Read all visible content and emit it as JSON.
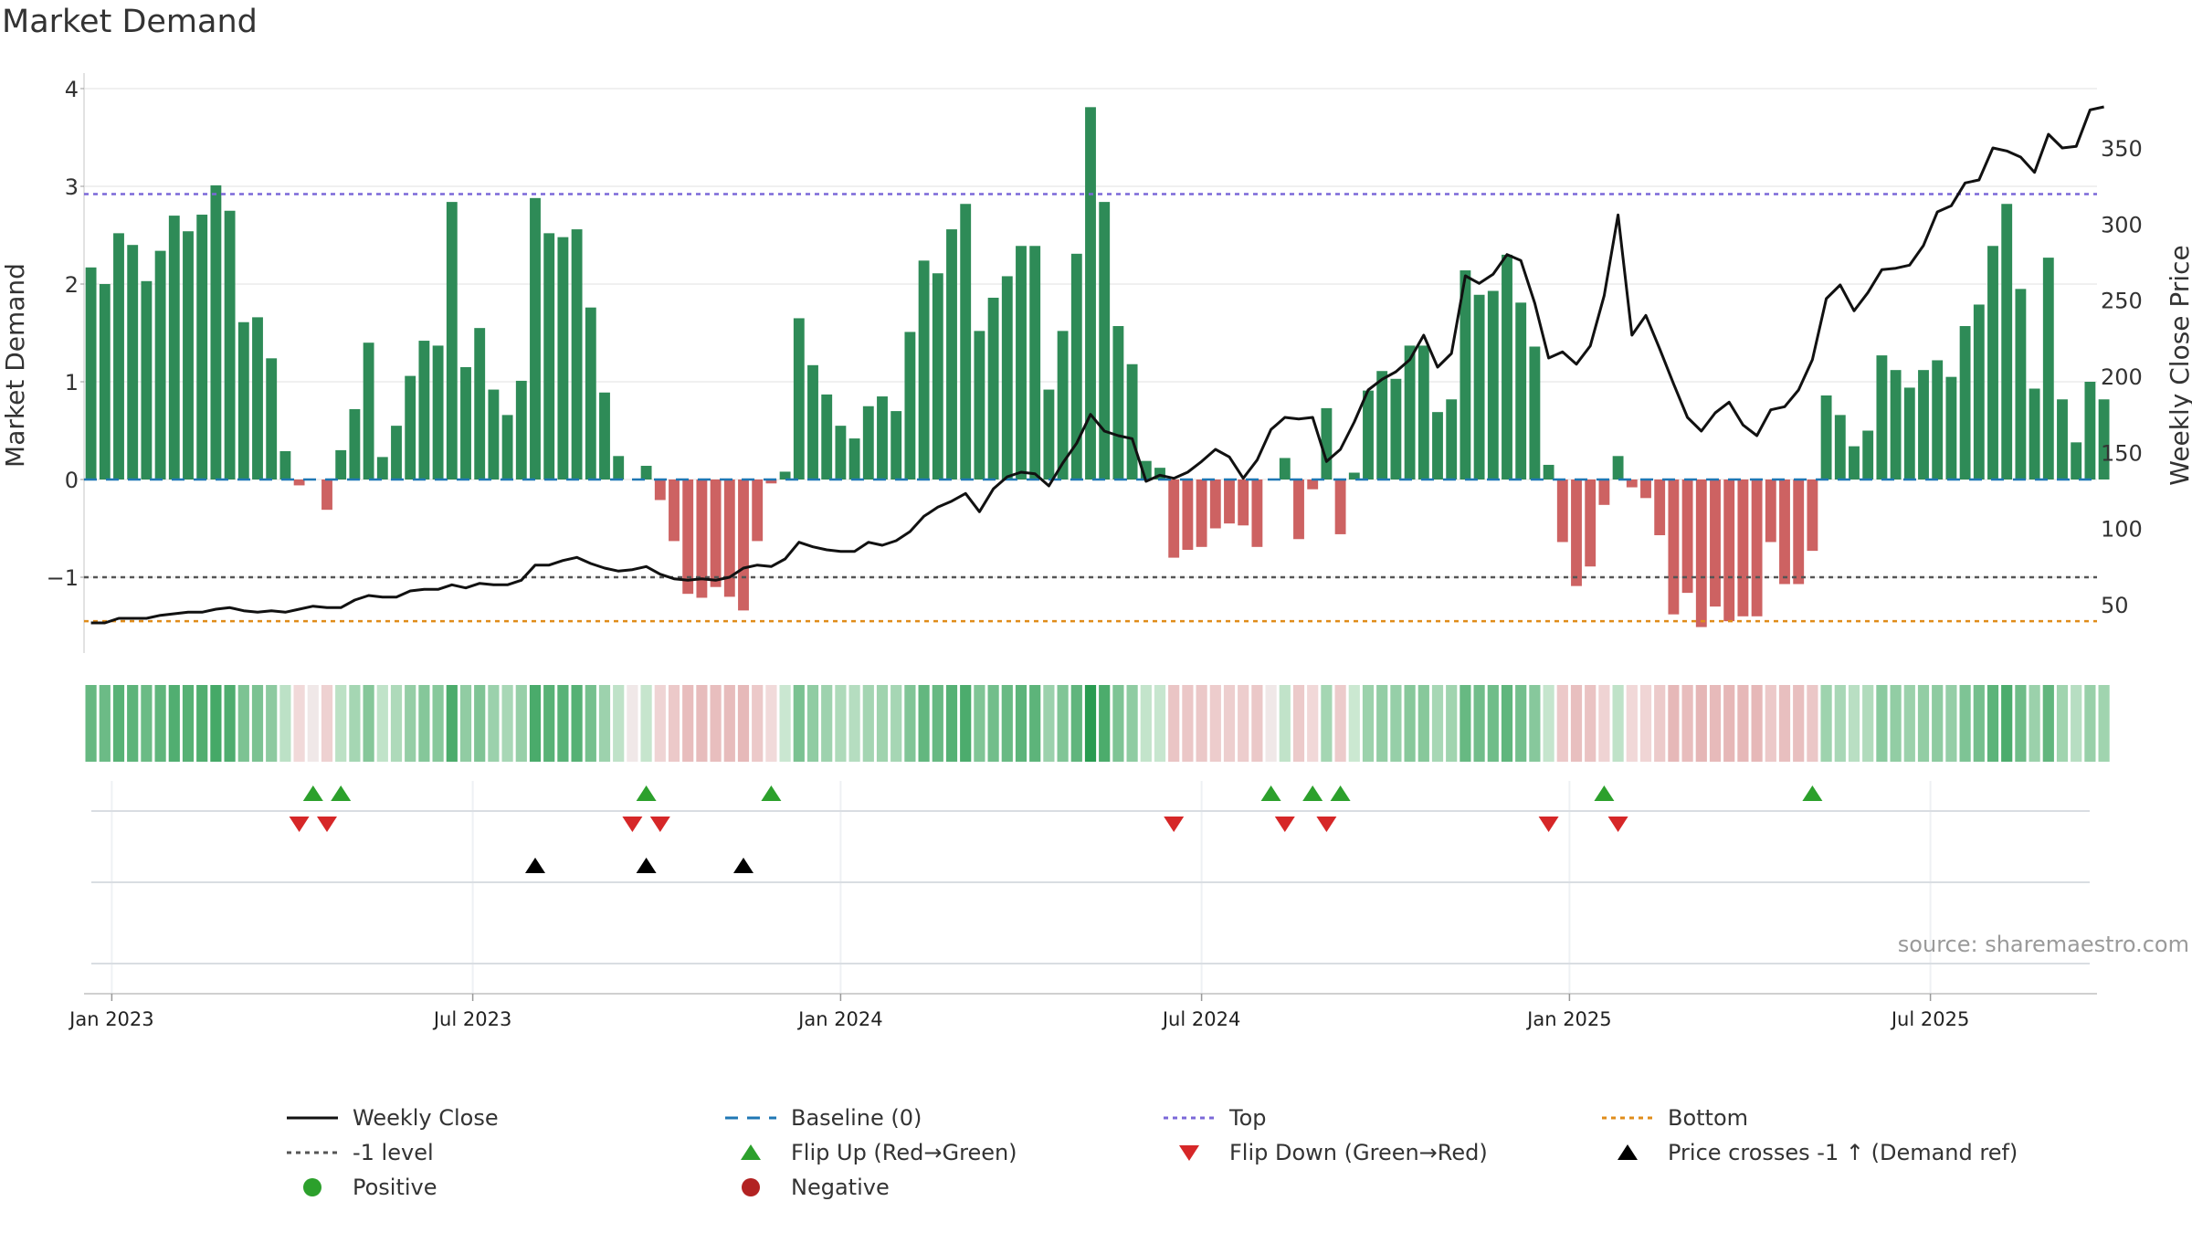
{
  "title": "Market Demand",
  "source": "source: sharemaestro.com",
  "colors": {
    "positive": "#2e8b57",
    "negative": "#cd6262",
    "price": "#111111",
    "baseline": "#1f77b4",
    "top": "#7b68d8",
    "minus1": "#555555",
    "bottom": "#e08c1a",
    "flip_up": "#2ca02c",
    "flip_down": "#d62728",
    "cross": "#000000",
    "positive_dot": "#2ca02c",
    "negative_dot": "#b22222"
  },
  "chart_data": {
    "type": "bar",
    "title": "Market Demand",
    "ylabel": "Market Demand",
    "y2label": "Weekly Close Price",
    "ylim": [
      -1.8,
      4.0
    ],
    "y2lim": [
      12,
      383
    ],
    "yticks": [
      4,
      3,
      2,
      1,
      0,
      -1
    ],
    "ytick_labels": [
      "4",
      "3",
      "2",
      "1",
      "0",
      "−1"
    ],
    "y2ticks": [
      350,
      300,
      250,
      200,
      150,
      100,
      50
    ],
    "y2tick_labels": [
      "350",
      "300",
      "250",
      "200",
      "150",
      "100",
      "50"
    ],
    "x_index_range": [
      -0.5,
      144.5
    ],
    "xticks": [
      1.5,
      27.5,
      54,
      80,
      106.5,
      132.5
    ],
    "xtick_labels": [
      "Jan 2023",
      "Jul 2023",
      "Jan 2024",
      "Jul 2024",
      "Jan 2025",
      "Jul 2025"
    ],
    "reference_lines": {
      "baseline": 0,
      "top": 2.92,
      "minus1": -1,
      "bottom": -1.45
    },
    "series": [
      {
        "name": "Market Demand",
        "values": [
          2.17,
          2.0,
          2.52,
          2.4,
          2.03,
          2.34,
          2.7,
          2.54,
          2.71,
          3.01,
          2.75,
          1.61,
          1.66,
          1.24,
          0.29,
          -0.06,
          0.0,
          -0.31,
          0.3,
          0.72,
          1.4,
          0.23,
          0.55,
          1.06,
          1.42,
          1.37,
          2.84,
          1.15,
          1.55,
          0.92,
          0.66,
          1.01,
          2.88,
          2.52,
          2.48,
          2.56,
          1.76,
          0.89,
          0.24,
          0.0,
          0.14,
          -0.21,
          -0.63,
          -1.17,
          -1.21,
          -1.1,
          -1.2,
          -1.34,
          -0.63,
          -0.04,
          0.08,
          1.65,
          1.17,
          0.87,
          0.55,
          0.42,
          0.75,
          0.85,
          0.7,
          1.51,
          2.24,
          2.11,
          2.56,
          2.82,
          1.52,
          1.86,
          2.08,
          2.39,
          2.39,
          0.92,
          1.52,
          2.31,
          3.81,
          2.84,
          1.57,
          1.18,
          0.19,
          0.12,
          -0.8,
          -0.72,
          -0.69,
          -0.5,
          -0.45,
          -0.47,
          -0.69,
          0.0,
          0.22,
          -0.61,
          -0.1,
          0.73,
          -0.56,
          0.07,
          0.91,
          1.11,
          1.03,
          1.37,
          1.37,
          0.69,
          0.82,
          2.14,
          1.89,
          1.93,
          2.3,
          1.81,
          1.36,
          0.15,
          -0.64,
          -1.09,
          -0.89,
          -0.26,
          0.24,
          -0.08,
          -0.19,
          -0.57,
          -1.38,
          -1.16,
          -1.51,
          -1.3,
          -1.45,
          -1.4,
          -1.4,
          -0.64,
          -1.07,
          -1.07,
          -0.73,
          0.86,
          0.66,
          0.34,
          0.5,
          1.27,
          1.12,
          0.94,
          1.12,
          1.22,
          1.05,
          1.57,
          1.79,
          2.39,
          2.82,
          1.95,
          0.93,
          2.27,
          0.82,
          0.38,
          1.0,
          0.82
        ]
      },
      {
        "name": "Weekly Close",
        "values": [
          38,
          38,
          41,
          41,
          41,
          43,
          44,
          45,
          45,
          47,
          48,
          46,
          45,
          46,
          45,
          47,
          49,
          48,
          48,
          53,
          56,
          55,
          55,
          59,
          60,
          60,
          63,
          61,
          64,
          63,
          63,
          66,
          76,
          76,
          79,
          81,
          77,
          74,
          72,
          73,
          75,
          70,
          67,
          66,
          67,
          66,
          68,
          74,
          76,
          75,
          80,
          91,
          88,
          86,
          85,
          85,
          91,
          89,
          92,
          98,
          108,
          114,
          118,
          123,
          111,
          126,
          134,
          137,
          136,
          128,
          143,
          156,
          175,
          164,
          161,
          159,
          131,
          135,
          133,
          137,
          144,
          152,
          147,
          133,
          145,
          165,
          173,
          172,
          173,
          144,
          152,
          170,
          191,
          198,
          203,
          211,
          227,
          206,
          215,
          266,
          261,
          267,
          280,
          276,
          248,
          212,
          216,
          208,
          220,
          253,
          306,
          227,
          240,
          218,
          195,
          173,
          164,
          176,
          183,
          168,
          161,
          178,
          180,
          191,
          211,
          251,
          260,
          243,
          255,
          270,
          271,
          273,
          286,
          308,
          312,
          327,
          329,
          350,
          348,
          344,
          334,
          359,
          350,
          351,
          375,
          377
        ]
      }
    ],
    "strip_label": "",
    "flip_up_indices": [
      16,
      18,
      40,
      49,
      85,
      88,
      90,
      109,
      124
    ],
    "flip_down_indices": [
      15,
      17,
      39,
      41,
      78,
      86,
      89,
      105,
      110
    ],
    "cross_up_indices": [
      32,
      40,
      47
    ],
    "legend": [
      {
        "key": "price",
        "label": "Weekly Close"
      },
      {
        "key": "baseline",
        "label": "Baseline (0)"
      },
      {
        "key": "top",
        "label": "Top"
      },
      {
        "key": "bottom",
        "label": "Bottom"
      },
      {
        "key": "minus1",
        "label": "-1 level"
      },
      {
        "key": "flip_up",
        "label": "Flip Up (Red→Green)"
      },
      {
        "key": "flip_down",
        "label": "Flip Down (Green→Red)"
      },
      {
        "key": "cross",
        "label": "Price crosses -1 ↑ (Demand ref)"
      },
      {
        "key": "positive_dot",
        "label": "Positive"
      },
      {
        "key": "negative_dot",
        "label": "Negative"
      }
    ]
  }
}
